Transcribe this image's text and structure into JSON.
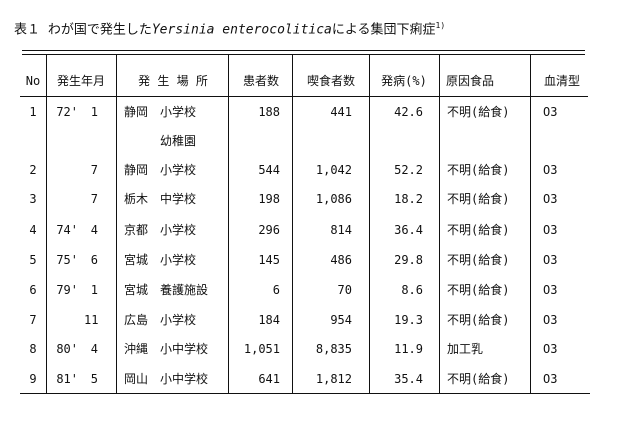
{
  "title": {
    "label": "表１",
    "prefix": "わが国で発生した",
    "species": "Yersinia enterocolitica",
    "suffix": "による集団下痢症",
    "ref": "1)"
  },
  "columns": [
    "No",
    "発生年月",
    "発 生 場 所",
    "患者数",
    "喫食者数",
    "発病(%)",
    "原因食品",
    "血清型"
  ],
  "rows": [
    {
      "no": "1",
      "year": "72'",
      "month": "1",
      "pref": "静岡",
      "place": "小学校",
      "patients": "188",
      "eaters": "441",
      "rate": "42.6",
      "food": "不明(給食)",
      "serotype": "O3"
    },
    {
      "no": "",
      "year": "",
      "month": "",
      "pref": "",
      "place": "幼稚園",
      "patients": "",
      "eaters": "",
      "rate": "",
      "food": "",
      "serotype": ""
    },
    {
      "no": "2",
      "year": "",
      "month": "7",
      "pref": "静岡",
      "place": "小学校",
      "patients": "544",
      "eaters": "1,042",
      "rate": "52.2",
      "food": "不明(給食)",
      "serotype": "O3"
    },
    {
      "no": "3",
      "year": "",
      "month": "7",
      "pref": "栃木",
      "place": "中学校",
      "patients": "198",
      "eaters": "1,086",
      "rate": "18.2",
      "food": "不明(給食)",
      "serotype": "O3"
    },
    {
      "no": "4",
      "year": "74'",
      "month": "4",
      "pref": "京都",
      "place": "小学校",
      "patients": "296",
      "eaters": "814",
      "rate": "36.4",
      "food": "不明(給食)",
      "serotype": "O3"
    },
    {
      "no": "5",
      "year": "75'",
      "month": "6",
      "pref": "宮城",
      "place": "小学校",
      "patients": "145",
      "eaters": "486",
      "rate": "29.8",
      "food": "不明(給食)",
      "serotype": "O3"
    },
    {
      "no": "6",
      "year": "79'",
      "month": "1",
      "pref": "宮城",
      "place": "養護施設",
      "patients": "6",
      "eaters": "70",
      "rate": "8.6",
      "food": "不明(給食)",
      "serotype": "O3"
    },
    {
      "no": "7",
      "year": "",
      "month": "11",
      "pref": "広島",
      "place": "小学校",
      "patients": "184",
      "eaters": "954",
      "rate": "19.3",
      "food": "不明(給食)",
      "serotype": "O3"
    },
    {
      "no": "8",
      "year": "80'",
      "month": "4",
      "pref": "沖縄",
      "place": "小中学校",
      "patients": "1,051",
      "eaters": "8,835",
      "rate": "11.9",
      "food": "加工乳",
      "serotype": "O3"
    },
    {
      "no": "9",
      "year": "81'",
      "month": "5",
      "pref": "岡山",
      "place": "小中学校",
      "patients": "641",
      "eaters": "1,812",
      "rate": "35.4",
      "food": "不明(給食)",
      "serotype": "O3"
    }
  ]
}
